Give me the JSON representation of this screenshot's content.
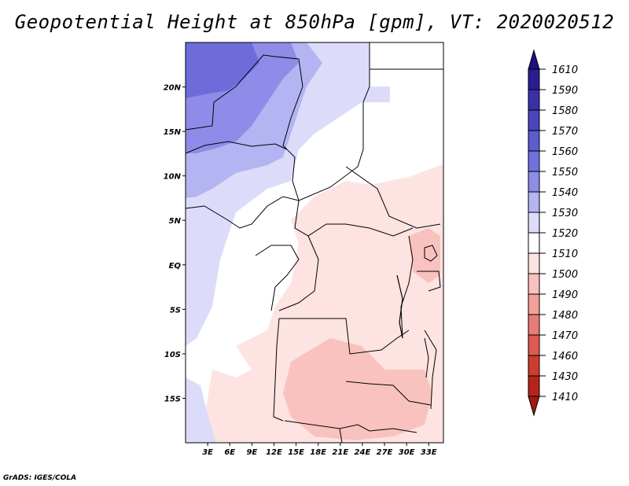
{
  "title": "Geopotential Height at 850hPa [gpm], VT: 2020020512",
  "credit": "GrADS: IGES/COLA",
  "map": {
    "lon_range": [
      0,
      35
    ],
    "lat_range": [
      -20,
      25
    ],
    "lat_ticks": [
      {
        "value": 20,
        "label": "20N"
      },
      {
        "value": 15,
        "label": "15N"
      },
      {
        "value": 10,
        "label": "10N"
      },
      {
        "value": 5,
        "label": "5N"
      },
      {
        "value": 0,
        "label": "EQ"
      },
      {
        "value": -5,
        "label": "5S"
      },
      {
        "value": -10,
        "label": "10S"
      },
      {
        "value": -15,
        "label": "15S"
      }
    ],
    "lon_ticks": [
      {
        "value": 3,
        "label": "3E"
      },
      {
        "value": 6,
        "label": "6E"
      },
      {
        "value": 9,
        "label": "9E"
      },
      {
        "value": 12,
        "label": "12E"
      },
      {
        "value": 15,
        "label": "15E"
      },
      {
        "value": 18,
        "label": "18E"
      },
      {
        "value": 21,
        "label": "21E"
      },
      {
        "value": 24,
        "label": "24E"
      },
      {
        "value": 27,
        "label": "27E"
      },
      {
        "value": 30,
        "label": "30E"
      },
      {
        "value": 33,
        "label": "33E"
      }
    ]
  },
  "colorbar": {
    "top_label": "1610",
    "levels": [
      {
        "label": "1590",
        "color": "#2b1c94"
      },
      {
        "label": "1580",
        "color": "#3a30a8"
      },
      {
        "label": "1570",
        "color": "#4a45bc"
      },
      {
        "label": "1560",
        "color": "#5d5ccf"
      },
      {
        "label": "1550",
        "color": "#7170dc"
      },
      {
        "label": "1540",
        "color": "#8e8ce8"
      },
      {
        "label": "1530",
        "color": "#b4b4f2"
      },
      {
        "label": "1520",
        "color": "#dcdcfa"
      },
      {
        "label": "1510",
        "color": "#ffffff"
      },
      {
        "label": "1500",
        "color": "#fde3e1"
      },
      {
        "label": "1490",
        "color": "#f9c2bf"
      },
      {
        "label": "1480",
        "color": "#f2a09b"
      },
      {
        "label": "1470",
        "color": "#e97c76"
      },
      {
        "label": "1460",
        "color": "#de5a52"
      },
      {
        "label": "1430",
        "color": "#cd3b31"
      },
      {
        "label": "1410",
        "color": "#b5241b"
      }
    ],
    "top_color": "#1e1080",
    "bottom_color": "#a01a12"
  },
  "regions": {
    "deep_blue": "#6e6bdb",
    "mid_blue": "#8e8ce8",
    "light_blue": "#b4b4f2",
    "pale_blue": "#dcdcfa",
    "pale_red": "#fde3e1",
    "light_red": "#f9c2bf"
  }
}
